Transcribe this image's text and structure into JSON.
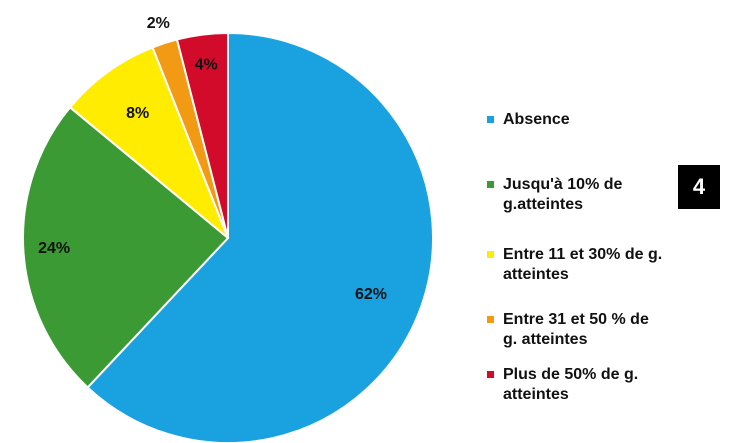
{
  "chart_data": {
    "type": "pie",
    "series": [
      {
        "name": "Absence",
        "color": "#19a1e0",
        "values": [
          62
        ],
        "value_labels": [
          "62%"
        ]
      },
      {
        "name": "Jusqu'à 10% de g.atteintes",
        "color": "#3b9a33",
        "values": [
          24
        ],
        "value_labels": [
          "24%"
        ]
      },
      {
        "name": "Entre 11 et 30% de g. atteintes",
        "color": "#ffec00",
        "values": [
          8
        ],
        "value_labels": [
          "8%"
        ]
      },
      {
        "name": "Entre 31 et 50 % de g. atteintes",
        "color": "#f39a15",
        "values": [
          2
        ],
        "value_labels": [
          "2%"
        ]
      },
      {
        "name": "Plus de 50% de g. atteintes",
        "color": "#d30b2b",
        "values": [
          4
        ],
        "value_labels": [
          "4%"
        ]
      }
    ]
  },
  "page_badge": "4"
}
